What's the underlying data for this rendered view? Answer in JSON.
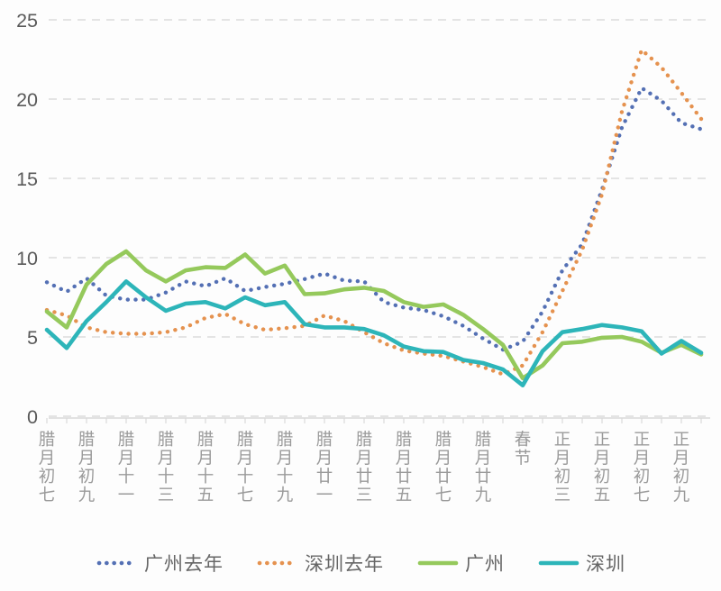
{
  "chart_data": {
    "type": "line",
    "title": "",
    "xlabel": "",
    "ylabel": "",
    "y_axis": {
      "min": 0,
      "max": 25,
      "ticks": [
        0,
        5,
        10,
        15,
        20,
        25
      ]
    },
    "grid": "dashed-horizontal",
    "legend_position": "bottom",
    "x_axis": {
      "points": 34,
      "labels": [
        "腊月初七",
        "",
        "腊月初九",
        "",
        "腊月十一",
        "",
        "腊月十三",
        "",
        "腊月十五",
        "",
        "腊月十七",
        "",
        "腊月十九",
        "",
        "腊月廿一",
        "",
        "腊月廿三",
        "",
        "腊月廿五",
        "",
        "腊月廿七",
        "",
        "腊月廿九",
        "",
        "春节",
        "",
        "正月初三",
        "",
        "正月初五",
        "",
        "正月初七",
        "",
        "正月初九",
        ""
      ]
    },
    "series": [
      {
        "name": "广州去年",
        "style": "dotted",
        "color": "#5470b4",
        "values": [
          8.45,
          7.85,
          8.7,
          7.6,
          7.35,
          7.35,
          7.8,
          8.5,
          8.2,
          8.7,
          7.9,
          8.15,
          8.35,
          8.65,
          9.0,
          8.55,
          8.5,
          7.2,
          6.85,
          6.7,
          6.3,
          5.7,
          4.9,
          4.2,
          4.7,
          6.6,
          9.2,
          10.85,
          14.3,
          18.2,
          20.7,
          19.9,
          18.5,
          18.1
        ]
      },
      {
        "name": "深圳去年",
        "style": "dotted",
        "color": "#e5924f",
        "values": [
          6.7,
          6.35,
          5.6,
          5.3,
          5.2,
          5.2,
          5.3,
          5.6,
          6.2,
          6.45,
          5.8,
          5.45,
          5.55,
          5.7,
          6.35,
          6.0,
          5.3,
          4.6,
          4.15,
          3.95,
          3.8,
          3.45,
          3.1,
          2.65,
          3.2,
          5.3,
          7.9,
          10.5,
          14.0,
          19.2,
          23.1,
          22.0,
          20.4,
          18.75
        ]
      },
      {
        "name": "广州",
        "style": "solid",
        "color": "#95c95c",
        "values": [
          6.6,
          5.6,
          8.3,
          9.6,
          10.4,
          9.2,
          8.5,
          9.2,
          9.4,
          9.35,
          10.2,
          9.0,
          9.5,
          7.7,
          7.75,
          8.0,
          8.1,
          7.9,
          7.2,
          6.9,
          7.05,
          6.4,
          5.5,
          4.5,
          2.4,
          3.2,
          4.6,
          4.7,
          4.95,
          5.0,
          4.7,
          4.0,
          4.5,
          3.9
        ]
      },
      {
        "name": "深圳",
        "style": "solid",
        "color": "#2db5b9",
        "values": [
          5.45,
          4.3,
          6.0,
          7.2,
          8.5,
          7.5,
          6.65,
          7.1,
          7.2,
          6.8,
          7.5,
          7.0,
          7.2,
          5.8,
          5.6,
          5.6,
          5.5,
          5.1,
          4.4,
          4.1,
          4.05,
          3.55,
          3.35,
          2.95,
          1.95,
          4.1,
          5.3,
          5.5,
          5.75,
          5.6,
          5.35,
          3.95,
          4.75,
          4.0
        ]
      }
    ],
    "style_hints": {
      "gridline_color": "#dcdcdc",
      "axis_line_color": "#d9d9d9",
      "y_tick_label_color": "#595959",
      "x_tick_label_color": "#9a9a9a",
      "legend_text_color": "#666666",
      "background": "#fdfdfd"
    }
  }
}
